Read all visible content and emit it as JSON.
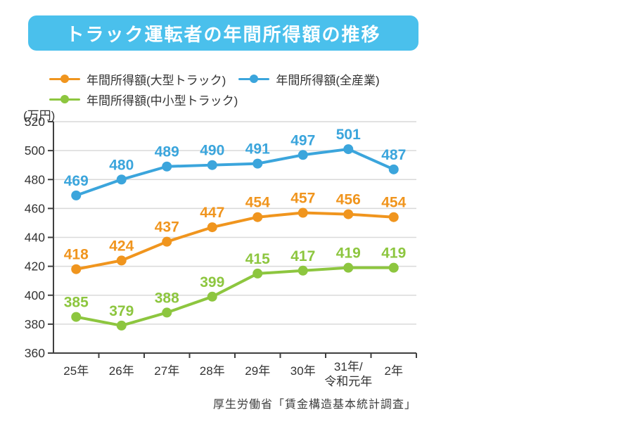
{
  "title": "トラック運転者の年間所得額の推移",
  "unit_label": "(万円)",
  "source": "厚生労働省「賃金構造基本統計調査」",
  "colors": {
    "title_bg": "#4AC0EC",
    "axis": "#3f3f3f",
    "grid": "#d9d9d9",
    "tick_text": "#333333",
    "orange": "#F0951E",
    "blue": "#3BA5DC",
    "green": "#8DC63F"
  },
  "chart_data": {
    "type": "line",
    "title": "トラック運転者の年間所得額の推移",
    "xlabel": "",
    "ylabel": "(万円)",
    "ylim": [
      360,
      520
    ],
    "ytick_step": 20,
    "grid": true,
    "legend_position": "top-left",
    "categories": [
      "25年",
      "26年",
      "27年",
      "28年",
      "29年",
      "30年",
      "31年/\n令和元年",
      "2年"
    ],
    "series": [
      {
        "name": "年間所得額(大型トラック)",
        "color": "#F0951E",
        "values": [
          418,
          424,
          437,
          447,
          454,
          457,
          456,
          454
        ]
      },
      {
        "name": "年間所得額(全産業)",
        "color": "#3BA5DC",
        "values": [
          469,
          480,
          489,
          490,
          491,
          497,
          501,
          487
        ]
      },
      {
        "name": "年間所得額(中小型トラック)",
        "color": "#8DC63F",
        "values": [
          385,
          379,
          388,
          399,
          415,
          417,
          419,
          419
        ]
      }
    ]
  }
}
